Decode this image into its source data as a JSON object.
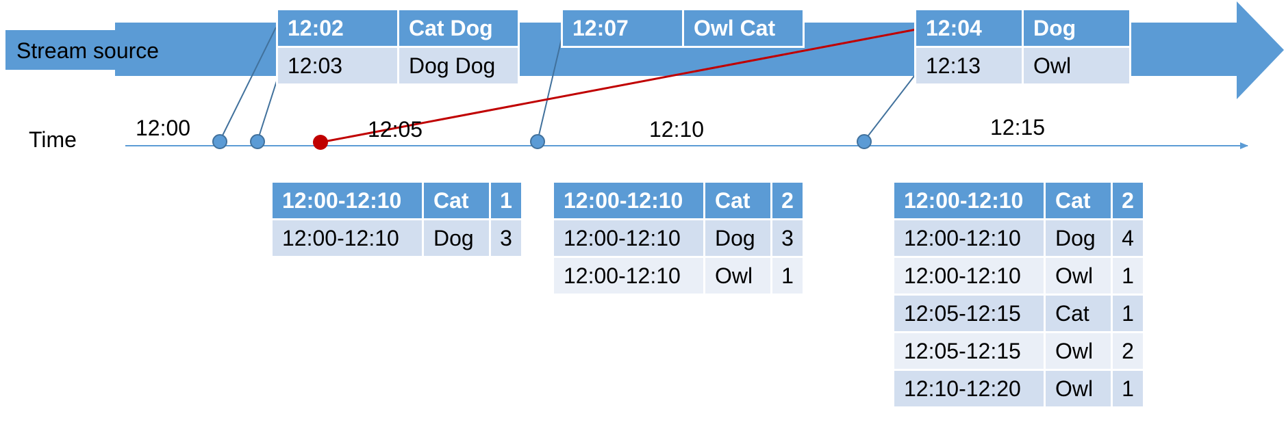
{
  "stream_label": "Stream source",
  "time_label": "Time",
  "time_ticks": [
    "12:00",
    "12:05",
    "12:10",
    "12:15"
  ],
  "colors": {
    "stream": "#5b9bd5",
    "header": "#5b9bd5",
    "row_dark": "#d2deef",
    "row_light": "#eaeff7",
    "late_event": "#c00000"
  },
  "events": [
    {
      "rows": [
        [
          "12:02",
          "Cat Dog"
        ],
        [
          "12:03",
          "Dog Dog"
        ]
      ]
    },
    {
      "rows": [
        [
          "12:07",
          "Owl Cat"
        ]
      ]
    },
    {
      "rows": [
        [
          "12:04",
          "Dog"
        ],
        [
          "12:13",
          "Owl"
        ]
      ]
    }
  ],
  "results": [
    {
      "rows": [
        [
          "12:00-12:10",
          "Cat",
          "1"
        ],
        [
          "12:00-12:10",
          "Dog",
          "3"
        ]
      ]
    },
    {
      "rows": [
        [
          "12:00-12:10",
          "Cat",
          "2"
        ],
        [
          "12:00-12:10",
          "Dog",
          "3"
        ],
        [
          "12:00-12:10",
          "Owl",
          "1"
        ]
      ]
    },
    {
      "rows": [
        [
          "12:00-12:10",
          "Cat",
          "2"
        ],
        [
          "12:00-12:10",
          "Dog",
          "4"
        ],
        [
          "12:00-12:10",
          "Owl",
          "1"
        ],
        [
          "12:05-12:15",
          "Cat",
          "1"
        ],
        [
          "12:05-12:15",
          "Owl",
          "2"
        ],
        [
          "12:10-12:20",
          "Owl",
          "1"
        ]
      ]
    }
  ]
}
